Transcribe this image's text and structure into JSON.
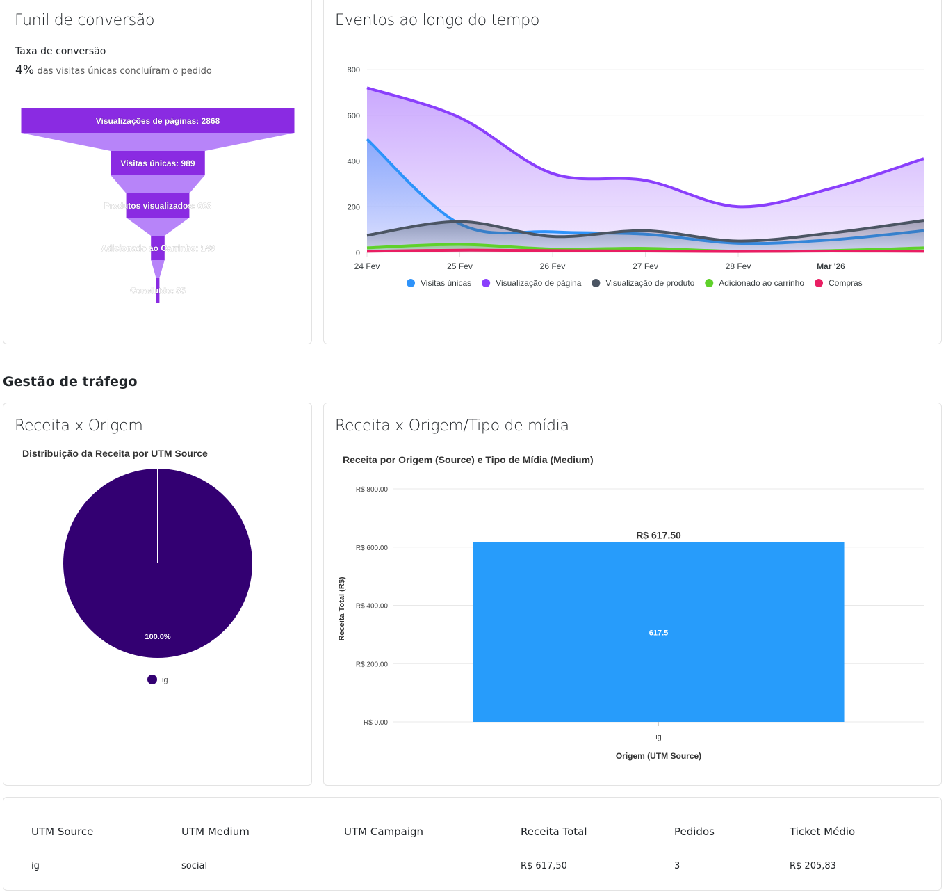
{
  "funnel_card": {
    "title": "Funil de conversão",
    "conversion_label": "Taxa de conversão",
    "conversion_value": "4%",
    "conversion_text": "das visitas únicas concluíram o pedido",
    "stages": [
      {
        "label": "Visualizações de páginas: 2868",
        "value": 2868
      },
      {
        "label": "Visitas únicas: 989",
        "value": 989
      },
      {
        "label": "Produtos visualizados: 663",
        "value": 663
      },
      {
        "label": "Adicionado ao Carrinho: 143",
        "value": 143
      },
      {
        "label": "Concluído: 35",
        "value": 35
      }
    ],
    "colors": {
      "bar": "#8a2be2",
      "connector": "#b784f9"
    }
  },
  "events_card": {
    "title": "Eventos ao longo do tempo"
  },
  "section_title": "Gestão de tráfego",
  "pie_card": {
    "title": "Receita x Origem"
  },
  "bar_card": {
    "title": "Receita x Origem/Tipo de mídia"
  },
  "chart_data": [
    {
      "type": "area",
      "x": [
        "24 Fev",
        "25 Fev",
        "26 Fev",
        "27 Fev",
        "28 Fev",
        "Mar '26",
        ""
      ],
      "xticks": [
        "24 Fev",
        "25 Fev",
        "26 Fev",
        "27 Fev",
        "28 Fev",
        "Mar '26"
      ],
      "ylim": [
        0,
        800
      ],
      "yticks": [
        "0",
        "200",
        "400",
        "600",
        "800"
      ],
      "grid": true,
      "legend": "bottom",
      "series": [
        {
          "name": "Visitas únicas",
          "color": "#2e93fa",
          "values": [
            495,
            125,
            90,
            80,
            40,
            55,
            95
          ]
        },
        {
          "name": "Visualização de página",
          "color": "#8a3ffc",
          "values": [
            720,
            590,
            345,
            315,
            200,
            280,
            410
          ]
        },
        {
          "name": "Visualização de produto",
          "color": "#4b5563",
          "values": [
            75,
            135,
            70,
            95,
            50,
            85,
            140
          ]
        },
        {
          "name": "Adicionado ao carrinho",
          "color": "#5fd12a",
          "values": [
            20,
            35,
            15,
            18,
            5,
            8,
            20
          ]
        },
        {
          "name": "Compras",
          "color": "#e91e63",
          "values": [
            5,
            10,
            8,
            6,
            4,
            6,
            5
          ]
        }
      ]
    },
    {
      "type": "pie",
      "title": "Distribuição da Receita por UTM Source",
      "categories": [
        "ig"
      ],
      "values": [
        617.5
      ],
      "data_labels": [
        "100.0%"
      ],
      "colors": [
        "#330072"
      ],
      "legend": "bottom"
    },
    {
      "type": "bar",
      "title": "Receita por Origem (Source) e Tipo de Mídia (Medium)",
      "categories": [
        "ig"
      ],
      "values": [
        617.5
      ],
      "top_labels": [
        "R$ 617.50"
      ],
      "inner_labels": [
        "617.5"
      ],
      "xlabel": "Origem (UTM Source)",
      "ylabel": "Receita Total (R$)",
      "ylim": [
        0,
        800
      ],
      "yticks": [
        "R$ 0.00",
        "R$ 200.00",
        "R$ 400.00",
        "R$ 600.00",
        "R$ 800.00"
      ],
      "color": "#279cfb",
      "grid": true
    }
  ],
  "table": {
    "headers": [
      "UTM Source",
      "UTM Medium",
      "UTM Campaign",
      "Receita Total",
      "Pedidos",
      "Ticket Médio"
    ],
    "rows": [
      [
        "ig",
        "social",
        "",
        "R$ 617,50",
        "3",
        "R$ 205,83"
      ]
    ]
  }
}
